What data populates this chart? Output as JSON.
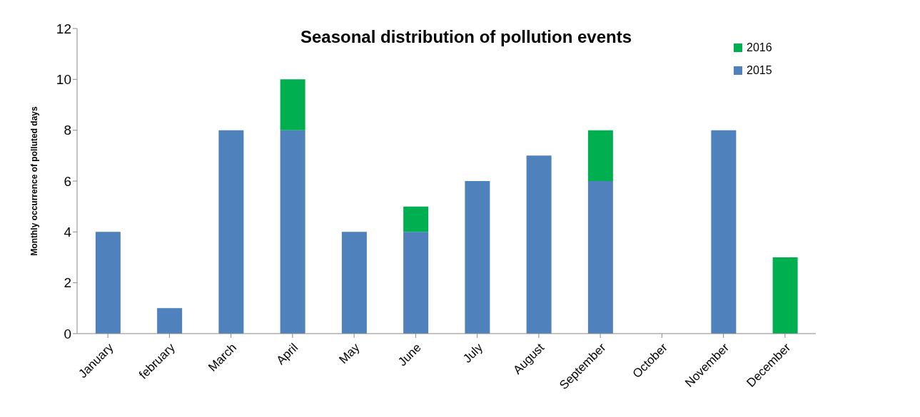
{
  "chart_data": {
    "type": "bar",
    "title": "Seasonal distribution of pollution events",
    "ylabel": "Monthly occurrence of polluted days",
    "categories": [
      "January",
      "february",
      "March",
      "April",
      "May",
      "June",
      "July",
      "August",
      "September",
      "October",
      "November",
      "December"
    ],
    "series": [
      {
        "name": "2015",
        "color": "#4f81bd",
        "values": [
          4,
          1,
          8,
          8,
          4,
          4,
          6,
          7,
          6,
          0,
          8,
          0
        ]
      },
      {
        "name": "2016",
        "color": "#00b050",
        "values": [
          0,
          0,
          0,
          2,
          0,
          1,
          0,
          0,
          2,
          0,
          0,
          3
        ]
      }
    ],
    "stacked": true,
    "ylim": [
      0,
      12
    ],
    "yticks": [
      0,
      2,
      4,
      6,
      8,
      10,
      12
    ],
    "grid": false,
    "legend": "top right"
  }
}
